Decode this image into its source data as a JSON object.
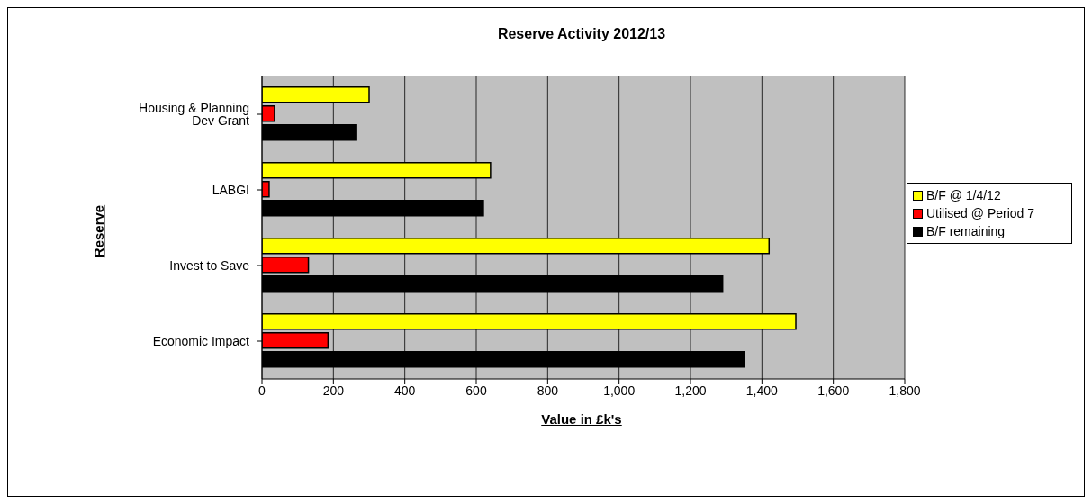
{
  "chart_data": {
    "type": "bar",
    "orientation": "horizontal",
    "title": "Reserve Activity 2012/13",
    "xlabel": "Value in £k's",
    "ylabel": "Reserve",
    "categories": [
      "Housing & Planning Dev Grant",
      "LABGI",
      "Invest to Save",
      "Economic Impact"
    ],
    "series": [
      {
        "name": "B/F @ 1/4/12",
        "color": "#ffff00",
        "values": [
          300,
          640,
          1420,
          1495
        ]
      },
      {
        "name": "Utilised @ Period 7",
        "color": "#ff0000",
        "values": [
          35,
          20,
          130,
          185
        ]
      },
      {
        "name": "B/F remaining",
        "color": "#000000",
        "values": [
          265,
          620,
          1290,
          1350
        ]
      }
    ],
    "xlim": [
      0,
      1800
    ],
    "xticks": [
      0,
      200,
      400,
      600,
      800,
      {
        "value": 1000,
        "label": "1,000"
      },
      {
        "value": 1200,
        "label": "1,200"
      },
      {
        "value": 1400,
        "label": "1,400"
      },
      {
        "value": 1600,
        "label": "1,600"
      },
      {
        "value": 1800,
        "label": "1,800"
      }
    ],
    "grid": "x",
    "legend": "right"
  }
}
